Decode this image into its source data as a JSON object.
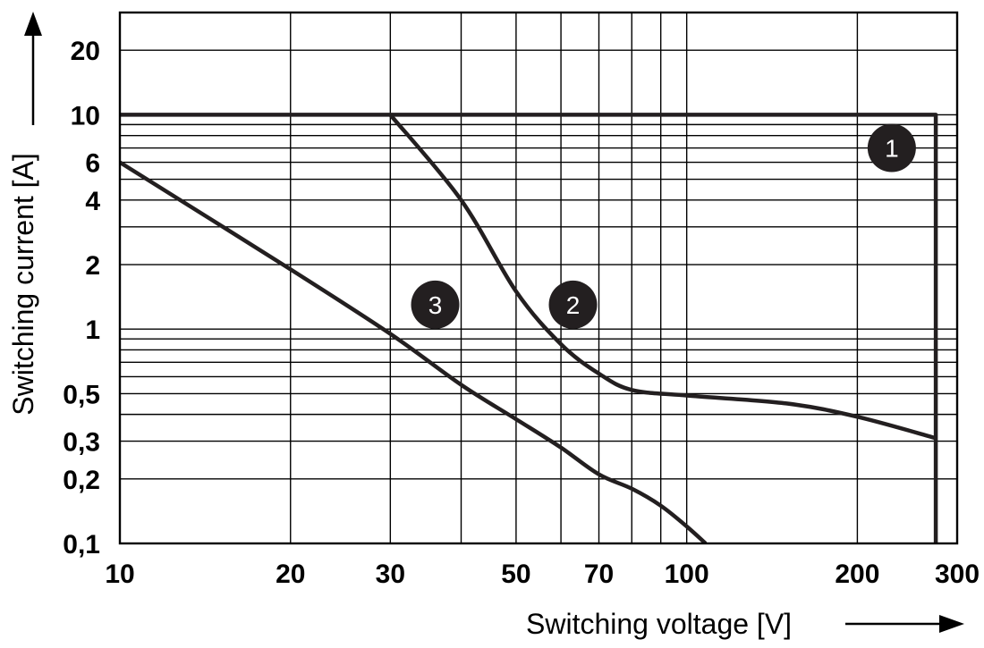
{
  "chart_data": {
    "type": "line",
    "xlabel": "Switching voltage [V]",
    "ylabel": "Switching current [A]",
    "x_scale": "log",
    "y_scale": "log",
    "xlim": [
      10,
      300
    ],
    "ylim": [
      0.1,
      30
    ],
    "grid": true,
    "x_ticks": [
      "10",
      "20",
      "30",
      "50",
      "70",
      "100",
      "200",
      "300"
    ],
    "y_ticks": [
      "0,1",
      "0,2",
      "0,3",
      "0,5",
      "1",
      "2",
      "4",
      "6",
      "10",
      "20"
    ],
    "series": [
      {
        "name": "1",
        "x": [
          10,
          275,
          275
        ],
        "y": [
          10,
          10,
          0.1
        ]
      },
      {
        "name": "2",
        "x": [
          30,
          40,
          50,
          60,
          70,
          80,
          100,
          150,
          200,
          275
        ],
        "y": [
          10,
          4,
          1.5,
          0.85,
          0.62,
          0.52,
          0.49,
          0.45,
          0.39,
          0.31
        ]
      },
      {
        "name": "3",
        "x": [
          10,
          20,
          30,
          40,
          50,
          60,
          70,
          80,
          90,
          100,
          108
        ],
        "y": [
          6,
          1.9,
          0.95,
          0.55,
          0.38,
          0.28,
          0.21,
          0.18,
          0.15,
          0.12,
          0.1
        ]
      }
    ]
  }
}
